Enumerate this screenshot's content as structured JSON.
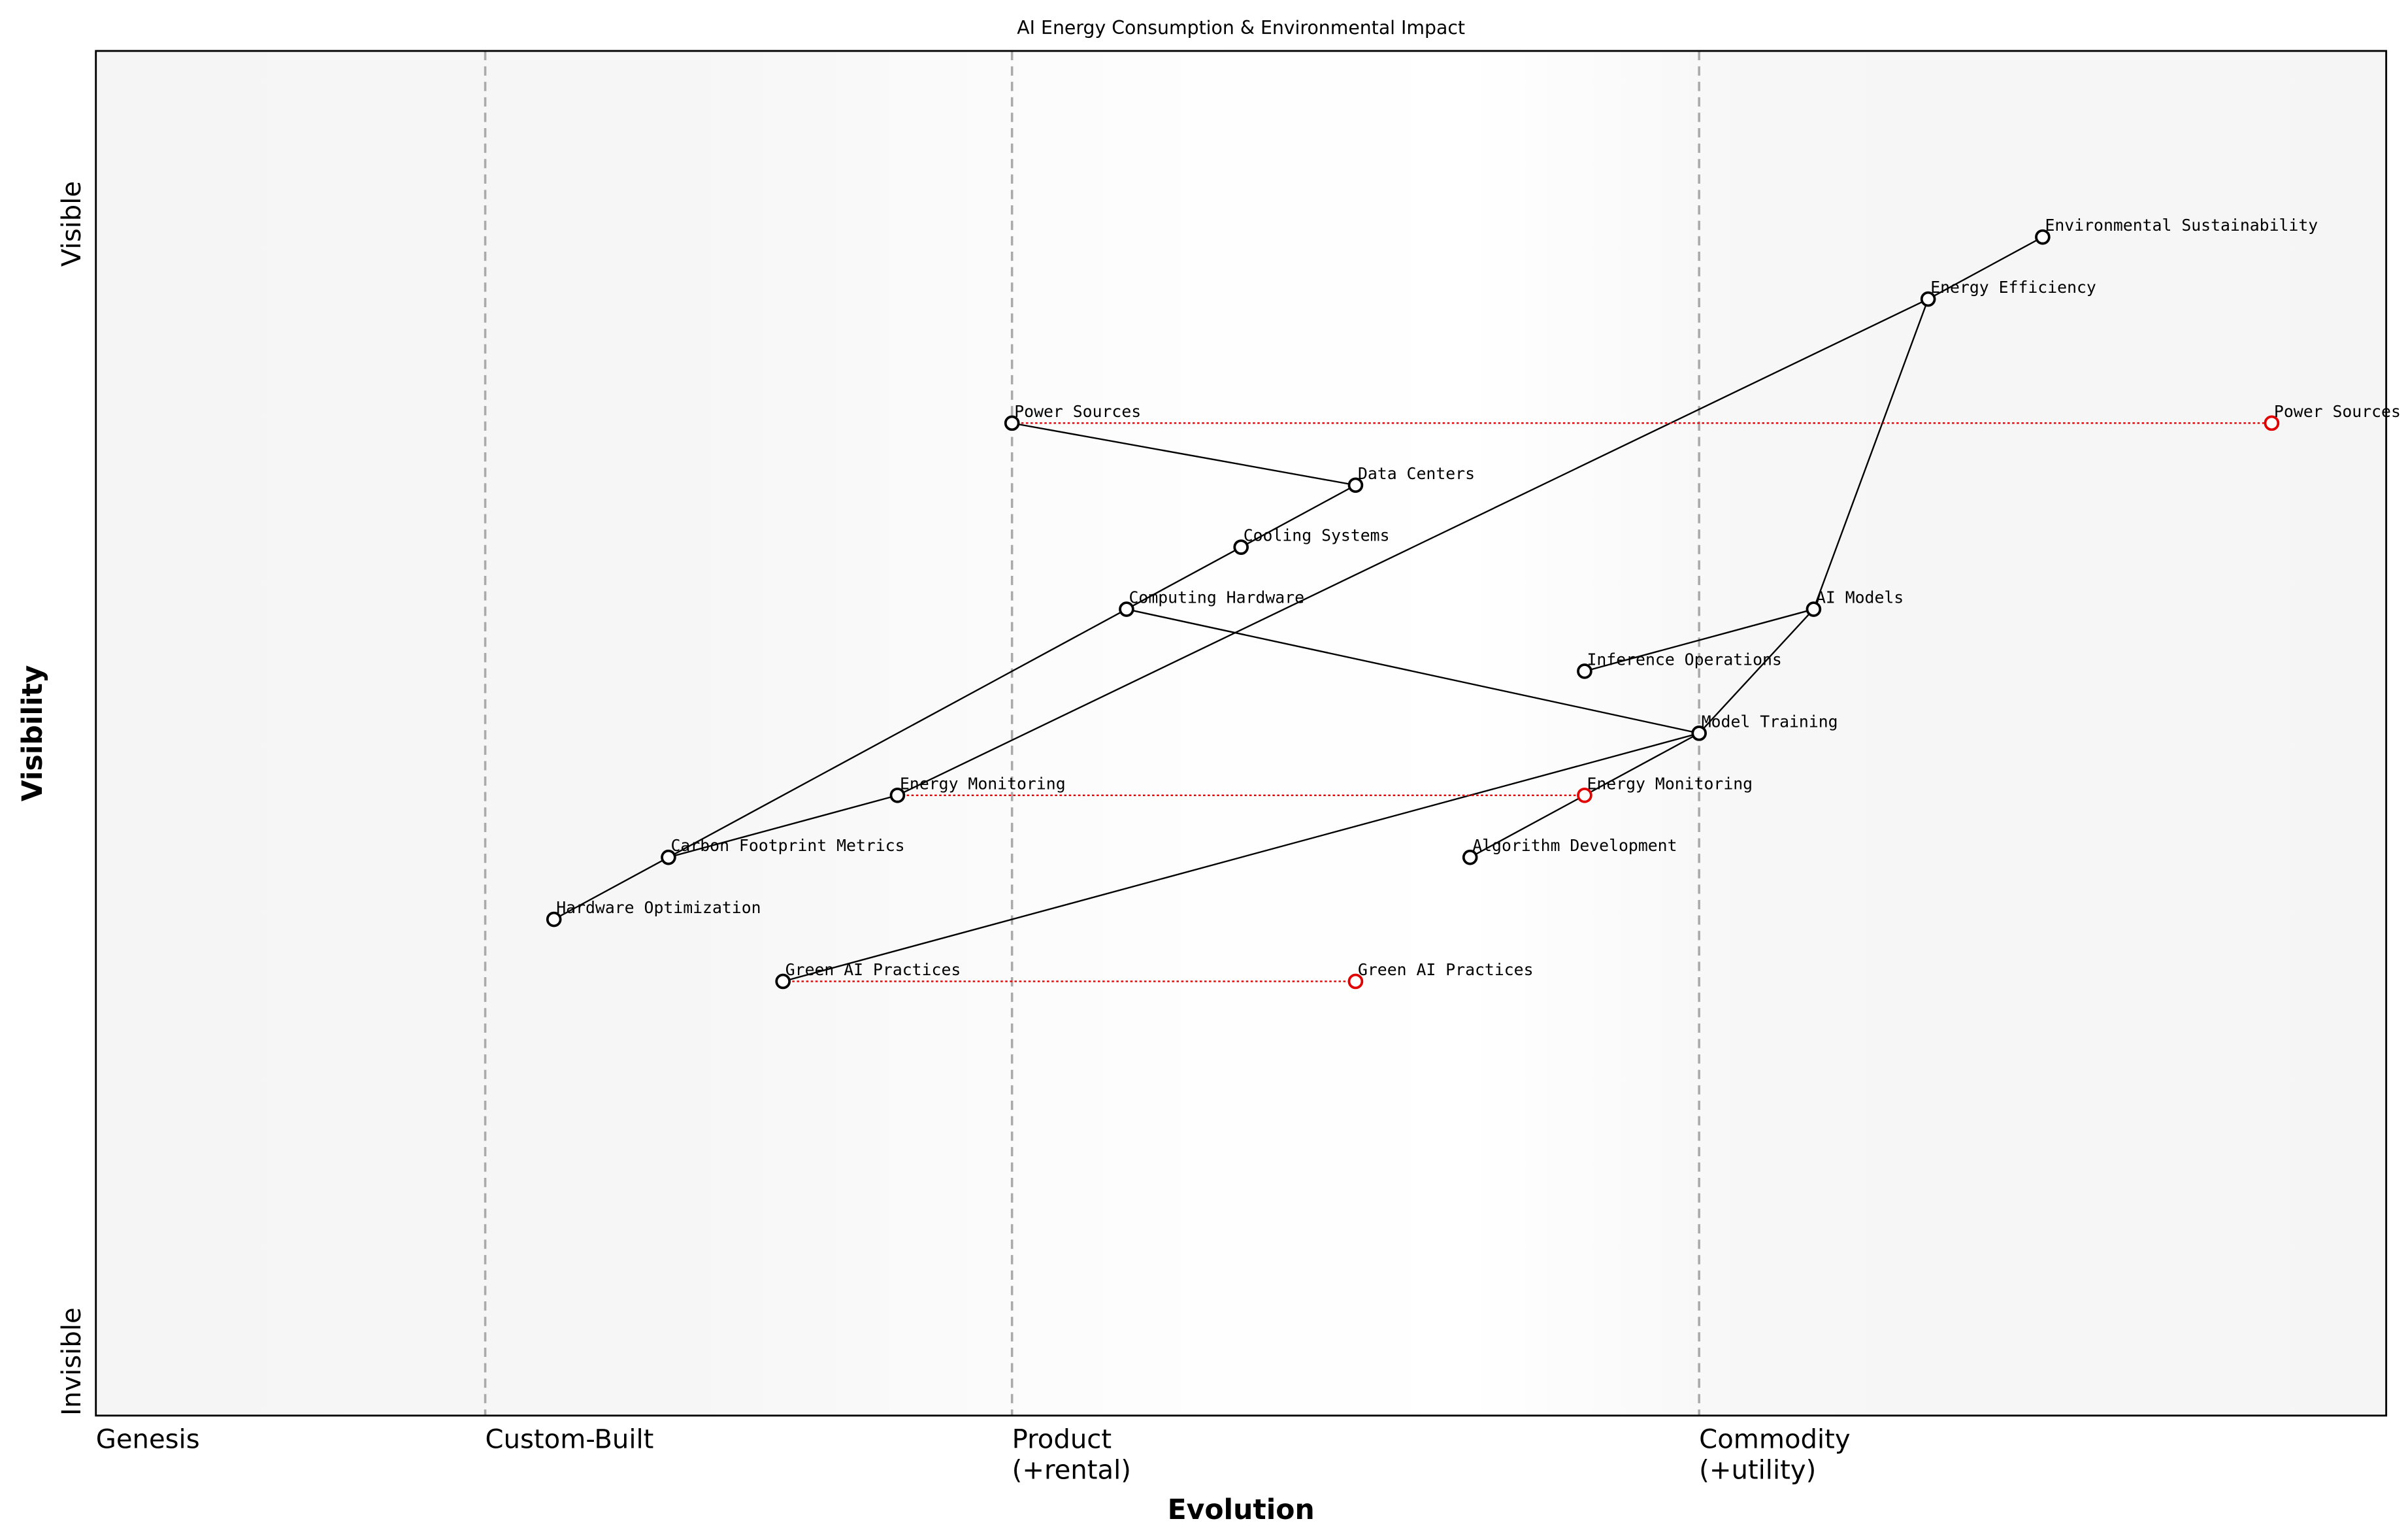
{
  "chart_data": {
    "type": "wardley-map",
    "title": "AI Energy Consumption & Environmental Impact",
    "xlabel": "Evolution",
    "ylabel": "Visibility",
    "xlim": [
      0,
      1
    ],
    "ylim": [
      0,
      1.1
    ],
    "y_tick_labels": {
      "top": "Visible",
      "bottom": "Invisible"
    },
    "stages": [
      {
        "label": "Genesis",
        "x": 0.0
      },
      {
        "label": "Custom-Built",
        "x": 0.17
      },
      {
        "label": "Product\n(+rental)",
        "x": 0.4
      },
      {
        "label": "Commodity\n(+utility)",
        "x": 0.7
      }
    ],
    "components": [
      {
        "name": "Environmental Sustainability",
        "x": 0.85,
        "y": 0.95
      },
      {
        "name": "Energy Efficiency",
        "x": 0.8,
        "y": 0.9
      },
      {
        "name": "Power Sources",
        "x": 0.4,
        "y": 0.8
      },
      {
        "name": "Data Centers",
        "x": 0.55,
        "y": 0.75
      },
      {
        "name": "Cooling Systems",
        "x": 0.5,
        "y": 0.7
      },
      {
        "name": "Computing Hardware",
        "x": 0.45,
        "y": 0.65
      },
      {
        "name": "AI Models",
        "x": 0.75,
        "y": 0.65
      },
      {
        "name": "Inference Operations",
        "x": 0.65,
        "y": 0.6
      },
      {
        "name": "Model Training",
        "x": 0.7,
        "y": 0.55
      },
      {
        "name": "Energy Monitoring",
        "x": 0.35,
        "y": 0.5
      },
      {
        "name": "Carbon Footprint Metrics",
        "x": 0.25,
        "y": 0.45
      },
      {
        "name": "Algorithm Development",
        "x": 0.6,
        "y": 0.45
      },
      {
        "name": "Hardware Optimization",
        "x": 0.2,
        "y": 0.4
      },
      {
        "name": "Green AI Practices",
        "x": 0.3,
        "y": 0.35
      }
    ],
    "evolved": [
      {
        "name": "Power Sources",
        "from_x": 0.4,
        "x": 0.95,
        "y": 0.8
      },
      {
        "name": "Energy Monitoring",
        "from_x": 0.35,
        "x": 0.65,
        "y": 0.5
      },
      {
        "name": "Green AI Practices",
        "from_x": 0.3,
        "x": 0.55,
        "y": 0.35
      }
    ],
    "links": [
      [
        "Environmental Sustainability",
        "Energy Efficiency"
      ],
      [
        "Energy Efficiency",
        "AI Models"
      ],
      [
        "Energy Efficiency",
        "Energy Monitoring"
      ],
      [
        "Power Sources",
        "Data Centers"
      ],
      [
        "Data Centers",
        "Cooling Systems"
      ],
      [
        "Cooling Systems",
        "Computing Hardware"
      ],
      [
        "Computing Hardware",
        "Carbon Footprint Metrics"
      ],
      [
        "Computing Hardware",
        "Model Training"
      ],
      [
        "Carbon Footprint Metrics",
        "Hardware Optimization"
      ],
      [
        "Carbon Footprint Metrics",
        "Energy Monitoring"
      ],
      [
        "AI Models",
        "Inference Operations"
      ],
      [
        "AI Models",
        "Model Training"
      ],
      [
        "Model Training",
        "Green AI Practices"
      ],
      [
        "Model Training",
        "Algorithm Development"
      ]
    ],
    "colors": {
      "component": "#000000",
      "evolved": "#e00000",
      "stage_line": "#aaaaaa",
      "background_edge": "#f5f5f5",
      "background_mid": "#ffffff"
    }
  }
}
